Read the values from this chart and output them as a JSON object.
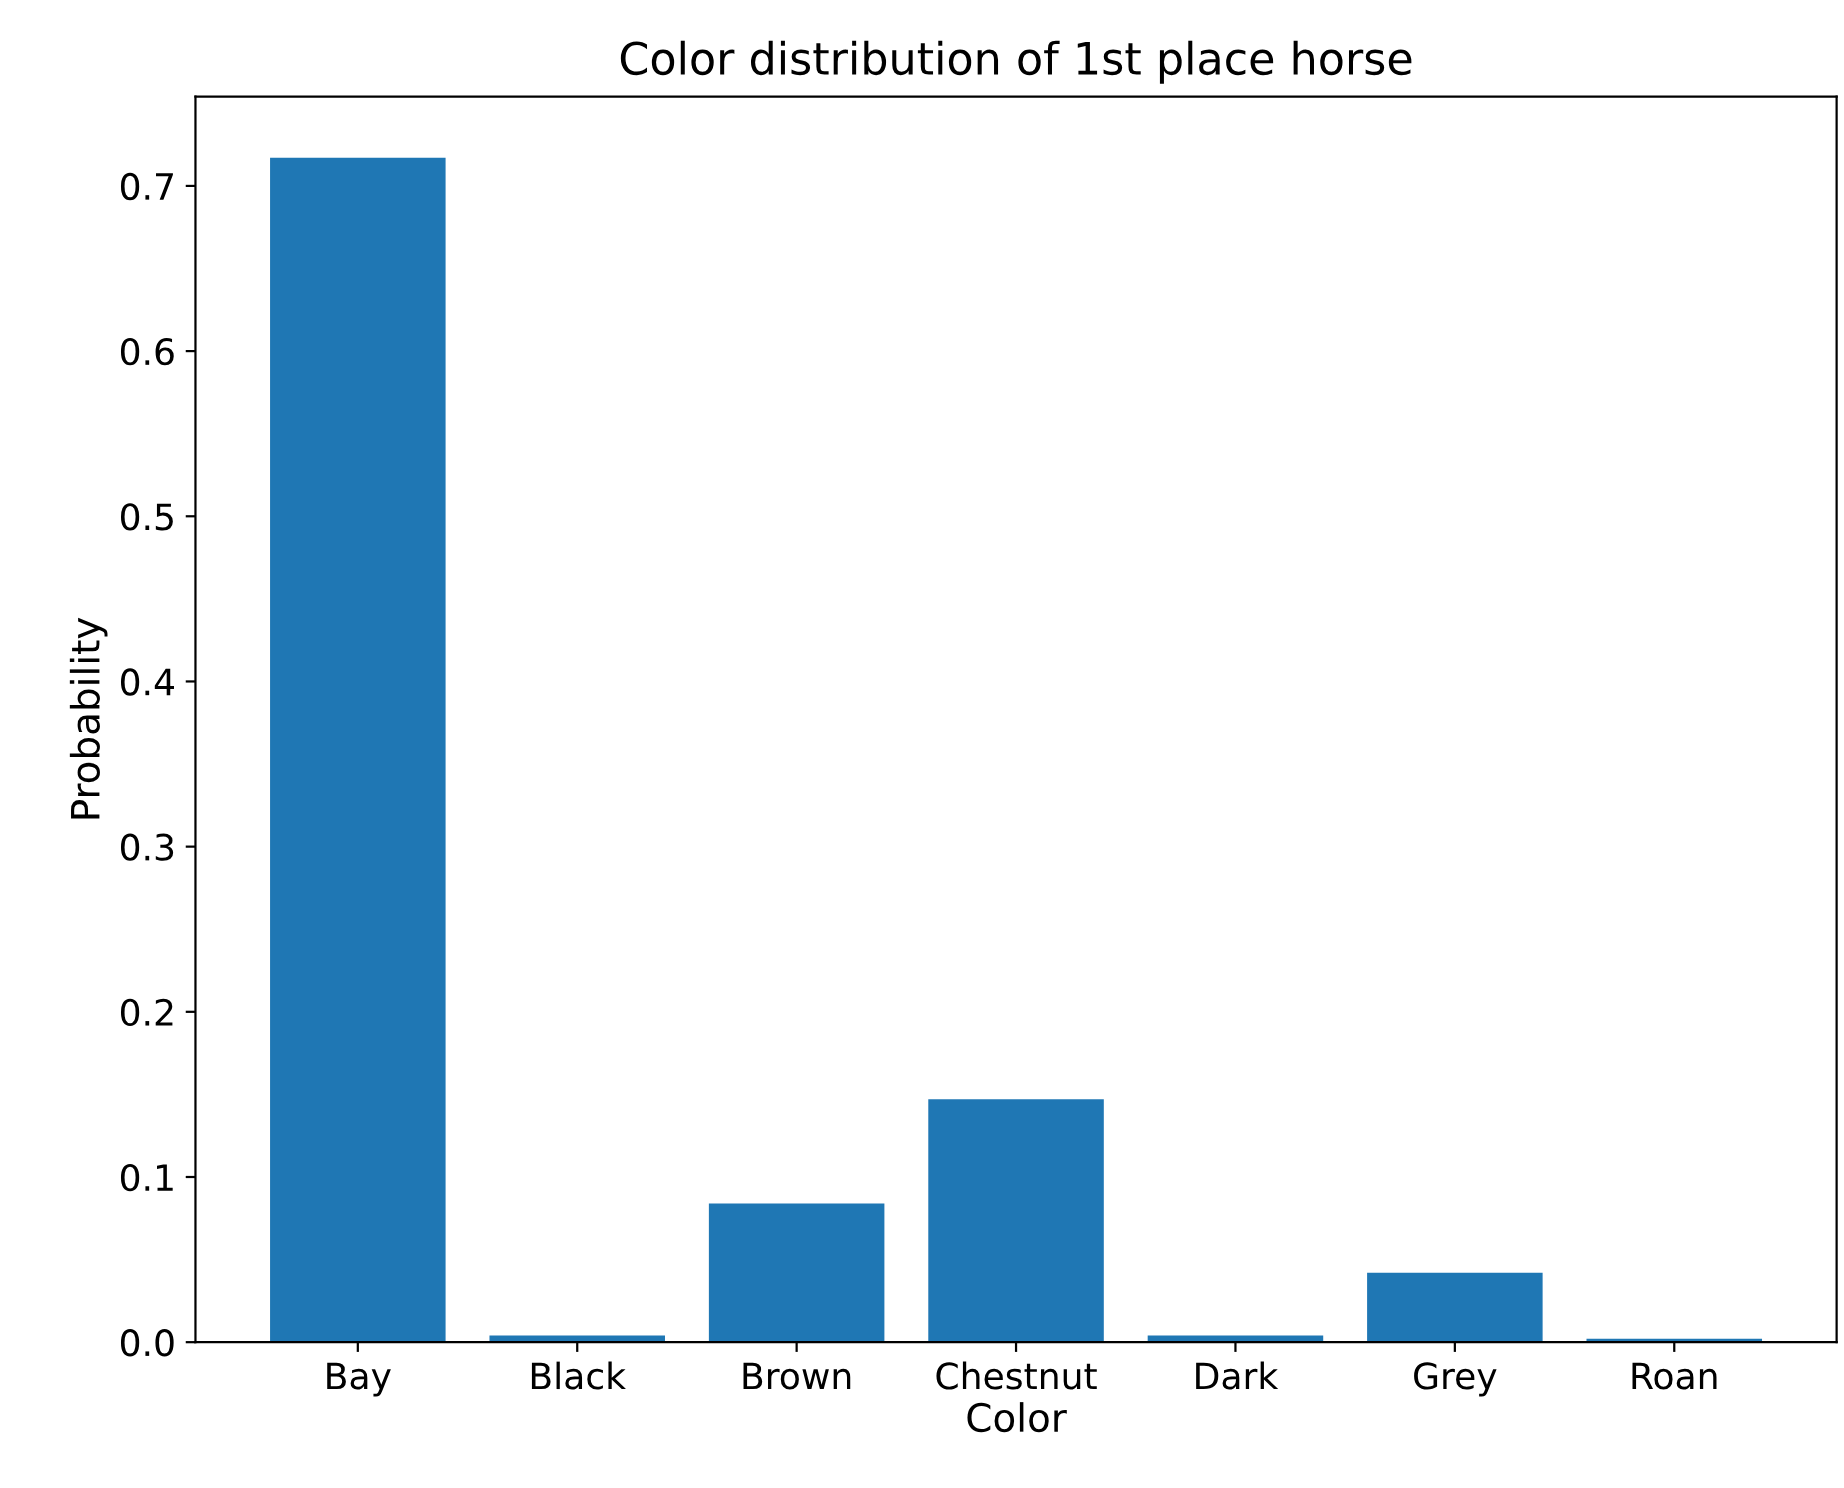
{
  "chart_data": {
    "type": "bar",
    "title": "Color distribution of 1st place horse",
    "xlabel": "Color",
    "ylabel": "Probability",
    "categories": [
      "Bay",
      "Black",
      "Brown",
      "Chestnut",
      "Dark",
      "Grey",
      "Roan"
    ],
    "values": [
      0.717,
      0.004,
      0.084,
      0.147,
      0.004,
      0.042,
      0.002
    ],
    "color": "#1f77b4",
    "ylim": [
      0,
      0.754
    ],
    "yticks": [
      {
        "value": 0,
        "label": "0.0"
      },
      0.1,
      0.2,
      0.3,
      0.4,
      0.5,
      0.6,
      0.7
    ],
    "grid": false,
    "legend": false
  }
}
